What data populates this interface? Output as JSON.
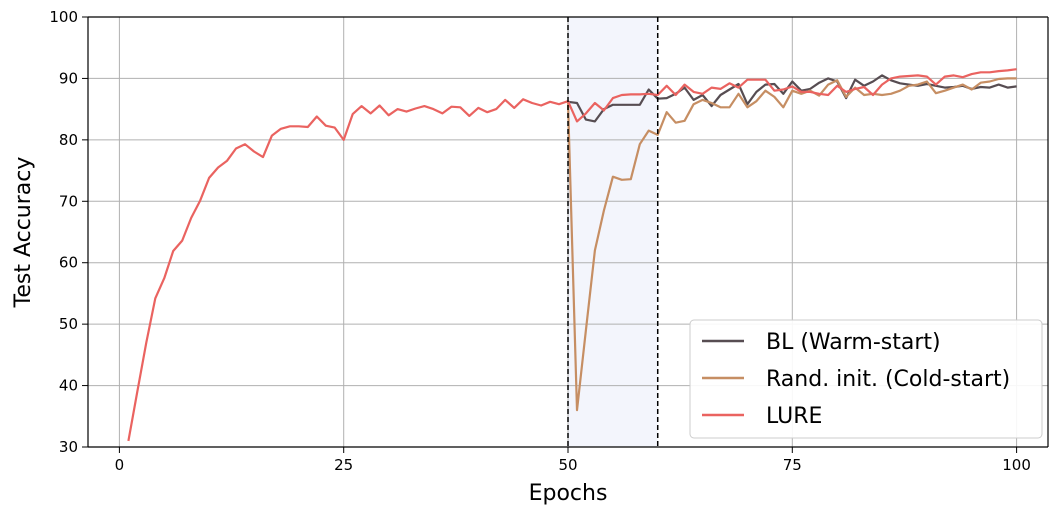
{
  "chart_data": {
    "type": "line",
    "title": "",
    "xlabel": "Epochs",
    "ylabel": "Test Accuracy",
    "xlim": [
      -3.5,
      103.5
    ],
    "ylim": [
      30,
      100
    ],
    "xticks": [
      0,
      25,
      50,
      75,
      100
    ],
    "yticks": [
      30,
      40,
      50,
      60,
      70,
      80,
      90,
      100
    ],
    "grid": true,
    "legend_position": "bottom-right",
    "highlight_region": {
      "x_start": 50,
      "x_end": 60,
      "color": "#f3f5fc"
    },
    "series": [
      {
        "name": "BL (Warm-start)",
        "color": "#574d52",
        "x": [
          50,
          51,
          52,
          53,
          54,
          55,
          56,
          57,
          58,
          59,
          60,
          61,
          62,
          63,
          64,
          65,
          66,
          67,
          68,
          69,
          70,
          71,
          72,
          73,
          74,
          75,
          76,
          77,
          78,
          79,
          80,
          81,
          82,
          83,
          84,
          85,
          86,
          87,
          88,
          89,
          90,
          91,
          92,
          93,
          94,
          95,
          96,
          97,
          98,
          99,
          100
        ],
        "y": [
          86.2,
          86.0,
          83.3,
          83.0,
          85.0,
          85.7,
          85.7,
          85.7,
          85.7,
          88.2,
          86.7,
          86.8,
          87.5,
          88.5,
          86.5,
          87.3,
          85.5,
          87.3,
          88.2,
          89.1,
          85.8,
          87.8,
          89.0,
          89.1,
          87.5,
          89.5,
          88.0,
          88.3,
          89.3,
          90.0,
          89.5,
          86.8,
          89.8,
          88.8,
          89.5,
          90.5,
          89.7,
          89.2,
          89.0,
          88.8,
          89.1,
          88.8,
          88.5,
          88.6,
          88.8,
          88.3,
          88.6,
          88.5,
          89.0,
          88.5,
          88.7
        ]
      },
      {
        "name": "Rand. init. (Cold-start)",
        "color": "#c68e63",
        "x": [
          50,
          51,
          52,
          53,
          54,
          55,
          56,
          57,
          58,
          59,
          60,
          61,
          62,
          63,
          64,
          65,
          66,
          67,
          68,
          69,
          70,
          71,
          72,
          73,
          74,
          75,
          76,
          77,
          78,
          79,
          80,
          81,
          82,
          83,
          84,
          85,
          86,
          87,
          88,
          89,
          90,
          91,
          92,
          93,
          94,
          95,
          96,
          97,
          98,
          99,
          100
        ],
        "y": [
          86.2,
          36.0,
          49.0,
          62.0,
          68.5,
          74.0,
          73.5,
          73.6,
          79.3,
          81.5,
          80.8,
          84.5,
          82.8,
          83.1,
          85.8,
          86.5,
          86.0,
          85.3,
          85.3,
          87.5,
          85.3,
          86.3,
          88.0,
          87.0,
          85.3,
          88.0,
          87.5,
          88.0,
          87.2,
          89.0,
          89.7,
          87.0,
          88.5,
          87.3,
          87.5,
          87.3,
          87.5,
          88.0,
          88.8,
          89.0,
          89.5,
          87.6,
          88.0,
          88.5,
          89.0,
          88.2,
          89.3,
          89.5,
          89.9,
          90.0,
          90.0
        ]
      },
      {
        "name": "LURE",
        "color": "#ea6360",
        "x": [
          1,
          2,
          3,
          4,
          5,
          6,
          7,
          8,
          9,
          10,
          11,
          12,
          13,
          14,
          15,
          16,
          17,
          18,
          19,
          20,
          21,
          22,
          23,
          24,
          25,
          26,
          27,
          28,
          29,
          30,
          31,
          32,
          33,
          34,
          35,
          36,
          37,
          38,
          39,
          40,
          41,
          42,
          43,
          44,
          45,
          46,
          47,
          48,
          49,
          50,
          51,
          52,
          53,
          54,
          55,
          56,
          57,
          58,
          59,
          60,
          61,
          62,
          63,
          64,
          65,
          66,
          67,
          68,
          69,
          70,
          71,
          72,
          73,
          74,
          75,
          76,
          77,
          78,
          79,
          80,
          81,
          82,
          83,
          84,
          85,
          86,
          87,
          88,
          89,
          90,
          91,
          92,
          93,
          94,
          95,
          96,
          97,
          98,
          99,
          100
        ],
        "y": [
          31.0,
          39.0,
          47.0,
          54.2,
          57.5,
          61.9,
          63.6,
          67.3,
          70.1,
          73.8,
          75.5,
          76.6,
          78.6,
          79.3,
          78.1,
          77.2,
          80.7,
          81.8,
          82.2,
          82.2,
          82.1,
          83.8,
          82.3,
          82.0,
          80.0,
          84.2,
          85.5,
          84.3,
          85.6,
          84.0,
          85.0,
          84.6,
          85.1,
          85.5,
          85.0,
          84.3,
          85.4,
          85.3,
          83.9,
          85.2,
          84.5,
          85.0,
          86.5,
          85.2,
          86.6,
          86.0,
          85.6,
          86.2,
          85.8,
          86.3,
          83.0,
          84.3,
          86.0,
          84.8,
          86.8,
          87.3,
          87.4,
          87.4,
          87.5,
          87.3,
          88.8,
          87.3,
          89.0,
          87.8,
          87.5,
          88.5,
          88.3,
          89.2,
          88.5,
          89.8,
          89.8,
          89.8,
          88.0,
          88.2,
          88.7,
          87.8,
          87.8,
          87.5,
          87.3,
          88.8,
          87.8,
          88.3,
          88.6,
          87.3,
          89.0,
          90.0,
          90.3,
          90.4,
          90.5,
          90.3,
          89.0,
          90.3,
          90.5,
          90.2,
          90.7,
          91.0,
          91.0,
          91.2,
          91.3,
          91.5
        ]
      }
    ]
  }
}
